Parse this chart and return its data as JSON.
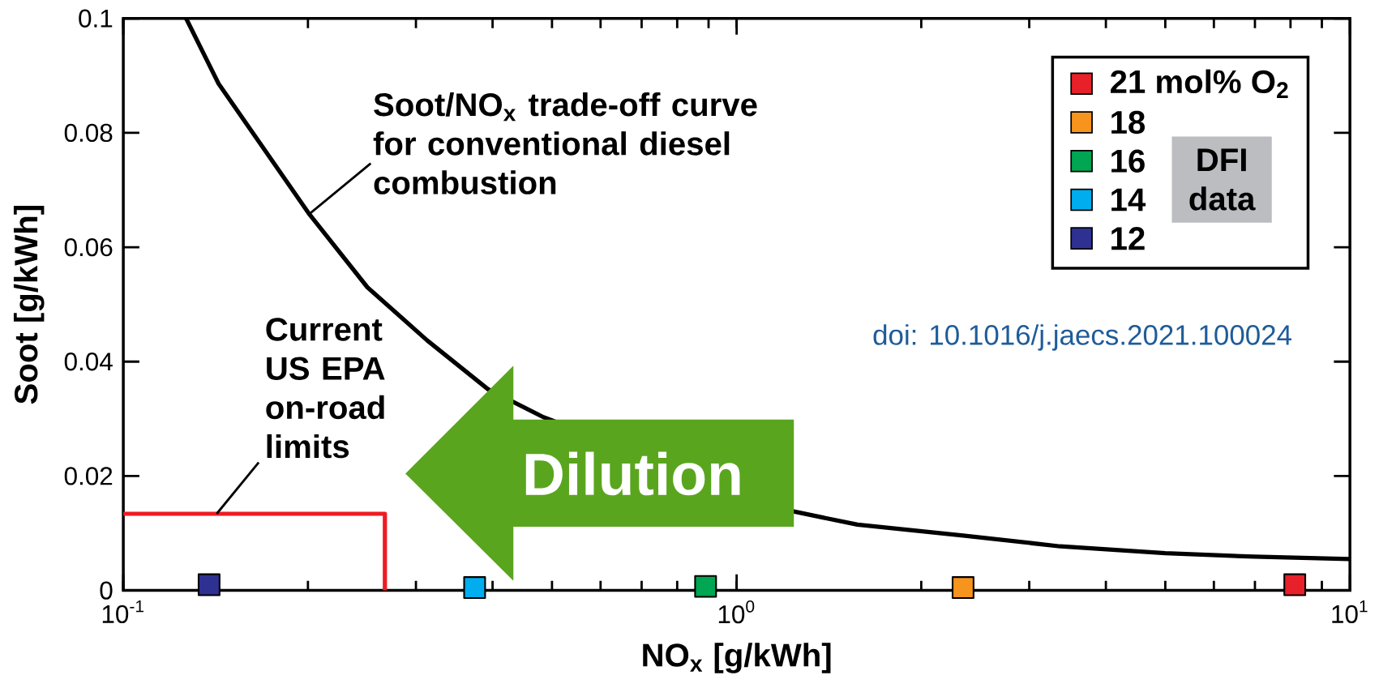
{
  "chart_data": {
    "type": "scatter",
    "xlabel": "NO$_{x}$ [g/kWh]",
    "ylabel": "Soot [g/kWh]",
    "legend_title": "DFI data",
    "log": "x",
    "xlim": [
      0.1,
      10
    ],
    "ylim": [
      0,
      0.1
    ],
    "xticks": [
      {
        "value": 0.1,
        "label": "10$^{-1}$"
      },
      {
        "value": 1,
        "label": "10$^{0}$"
      },
      {
        "value": 10,
        "label": "10$^{1}$"
      }
    ],
    "yticks": [
      0,
      0.02,
      0.04,
      0.06,
      0.08,
      0.1
    ],
    "legend": "top right",
    "marker": "square",
    "series": [
      {
        "name": "21 mol% O$_{2}$",
        "color": "#e8202a",
        "x": [
          8.13
        ],
        "values": [
          0.001
        ]
      },
      {
        "name": "18",
        "color": "#f7941d",
        "x": [
          2.34
        ],
        "values": [
          0.0005
        ]
      },
      {
        "name": "16",
        "color": "#00a651",
        "x": [
          0.89
        ],
        "values": [
          0.0007
        ]
      },
      {
        "name": "14",
        "color": "#00aeef",
        "x": [
          0.374
        ],
        "values": [
          0.0005
        ]
      },
      {
        "name": "12",
        "color": "#2e3192",
        "x": [
          0.138
        ],
        "values": [
          0.001
        ]
      },
      {
        "type": "line",
        "marker": "none",
        "line_style": "solid",
        "color": "#000000",
        "x": [
          0.1266,
          0.143,
          0.201,
          0.25,
          0.313,
          0.393,
          0.484,
          1.239,
          1.574,
          2.34,
          3.37,
          5.0,
          6.98,
          10
        ],
        "values": [
          0.1,
          0.0886,
          0.0658,
          0.053,
          0.0437,
          0.0352,
          0.0303,
          0.0138,
          0.0115,
          0.0096,
          0.0077,
          0.0065,
          0.0059,
          0.0055
        ]
      },
      {
        "type": "line",
        "marker": "none",
        "line_style": "solid",
        "color": "#ed1c24",
        "x": [
          0.1,
          0.267,
          0.267
        ],
        "values": [
          0.0134,
          0.0134,
          0
        ]
      }
    ],
    "annotations": [
      {
        "text": "Soot/NO$_{x}$ trade-off curve for conventional diesel combustion",
        "x": 0.201,
        "y": 0.0658
      },
      {
        "text": "Current US EPA on-road limits",
        "x": 0.142,
        "y": 0.0134
      },
      "Dilution",
      "doi: 10.1016/j.jaecs.2021.100024"
    ]
  }
}
